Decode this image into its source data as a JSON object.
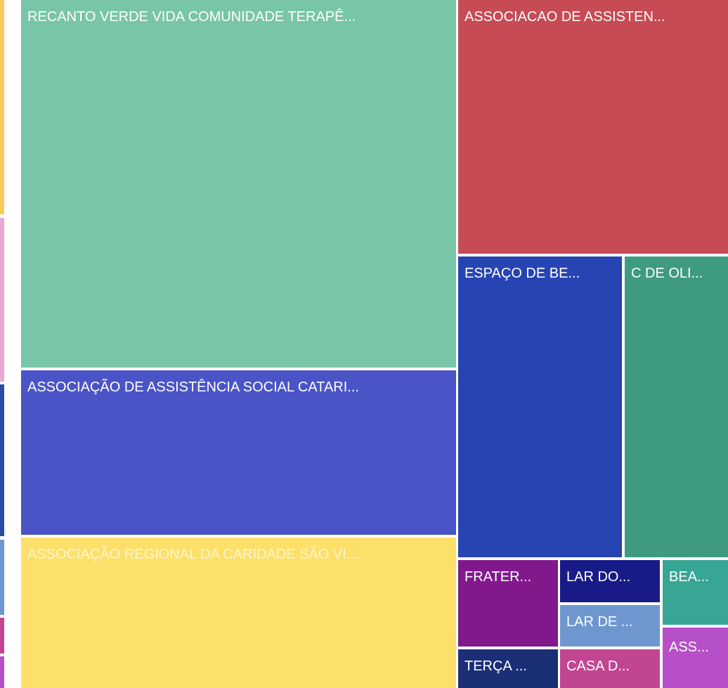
{
  "tiles": [
    {
      "label": "RECANTO VERDE VIDA COMUNIDADE TERAPÊ...",
      "color": "#79c5a8"
    },
    {
      "label": "ASSOCIAÇÃO DE ASSISTÊNCIA SOCIAL CATARI...",
      "color": "#4b54c7"
    },
    {
      "label": "ASSOCIAÇÃO REGIONAL DA CARIDADE SÃO VI...",
      "color": "#fde06a"
    },
    {
      "label": "ASSOCIACAO DE ASSISTEN...",
      "color": "#c64b55"
    },
    {
      "label": "ESPAÇO DE BE...",
      "color": "#2744b3"
    },
    {
      "label": "C DE OLI...",
      "color": "#3f9b80"
    },
    {
      "label": "FRATER...",
      "color": "#81198d"
    },
    {
      "label": "TERÇA ...",
      "color": "#1b2f77"
    },
    {
      "label": "LAR DO...",
      "color": "#181b87"
    },
    {
      "label": "LAR DE ...",
      "color": "#6f97cf"
    },
    {
      "label": "CASA D...",
      "color": "#c24591"
    },
    {
      "label": "BEA...",
      "color": "#37a694"
    },
    {
      "label": "ASS...",
      "color": "#b74fc8"
    }
  ]
}
